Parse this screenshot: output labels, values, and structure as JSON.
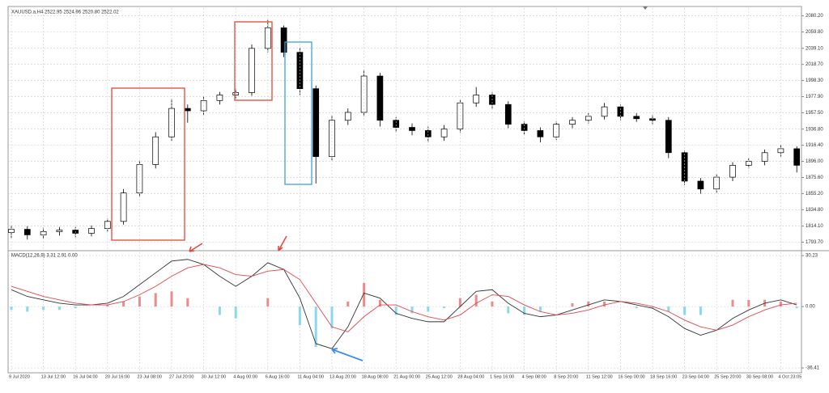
{
  "chart_data": [
    {
      "type": "candlestick",
      "title": "XAUUSD.a,H4  2522.95 2524.96 2520.80 2522.02",
      "open": [
        1806,
        1810,
        1803,
        1807,
        1809,
        1805,
        1811,
        1820,
        1856,
        1892,
        1927,
        1963,
        1960,
        1973,
        1980,
        1983,
        2039,
        2065,
        2034,
        1988,
        1902,
        1948,
        1958,
        2004,
        1948,
        1939,
        1935,
        1927,
        1937,
        1970,
        1980,
        1968,
        1943,
        1935,
        1927,
        1943,
        1948,
        1953,
        1965,
        1953,
        1950,
        1948,
        1907,
        1871,
        1861,
        1876,
        1891,
        1896,
        1907,
        1912
      ],
      "high": [
        1815,
        1814,
        1812,
        1813,
        1813,
        1815,
        1824,
        1861,
        1897,
        1933,
        1975,
        1968,
        1978,
        1984,
        1988,
        2044,
        2075,
        2068,
        2040,
        1992,
        1954,
        1963,
        2012,
        2008,
        1952,
        1944,
        1940,
        1942,
        1974,
        1990,
        1984,
        1972,
        1947,
        1939,
        1947,
        1952,
        1957,
        1970,
        1968,
        1957,
        1955,
        1952,
        1910,
        1875,
        1880,
        1895,
        1900,
        1911,
        1917,
        1915
      ],
      "low": [
        1799,
        1797,
        1798,
        1802,
        1800,
        1801,
        1807,
        1816,
        1851,
        1887,
        1922,
        1945,
        1955,
        1968,
        1976,
        1979,
        2034,
        2028,
        1980,
        1868,
        1897,
        1942,
        1953,
        1940,
        1933,
        1929,
        1920,
        1922,
        1932,
        1965,
        1963,
        1938,
        1930,
        1920,
        1923,
        1938,
        1944,
        1949,
        1948,
        1946,
        1943,
        1900,
        1866,
        1855,
        1856,
        1871,
        1887,
        1891,
        1902,
        1882
      ],
      "close": [
        1810,
        1803,
        1807,
        1809,
        1805,
        1811,
        1820,
        1856,
        1892,
        1927,
        1963,
        1960,
        1973,
        1980,
        1983,
        2039,
        2065,
        2034,
        1988,
        1902,
        1948,
        1958,
        2004,
        1948,
        1939,
        1935,
        1927,
        1937,
        1970,
        1980,
        1968,
        1943,
        1935,
        1927,
        1943,
        1948,
        1953,
        1965,
        1953,
        1950,
        1948,
        1907,
        1871,
        1861,
        1876,
        1891,
        1896,
        1907,
        1912,
        1891
      ],
      "up_color": "#ffffff",
      "down_color": "#000000",
      "ylim": [
        1785,
        2090
      ],
      "yticks": [
        {
          "value": 2080.2,
          "label": "2080.20"
        },
        {
          "value": 2059.8,
          "label": "2059.80"
        },
        {
          "value": 2039.1,
          "label": "2039.10"
        },
        {
          "value": 2018.7,
          "label": "2018.70"
        },
        {
          "value": 1998.3,
          "label": "1998.30"
        },
        {
          "value": 1977.9,
          "label": "1977.90"
        },
        {
          "value": 1957.5,
          "label": "1957.50"
        },
        {
          "value": 1936.8,
          "label": "1936.80"
        },
        {
          "value": 1916.4,
          "label": "1916.40"
        },
        {
          "value": 1896,
          "label": "1896.00"
        },
        {
          "value": 1875.6,
          "label": "1875.60"
        },
        {
          "value": 1855.2,
          "label": "1855.20"
        },
        {
          "value": 1834.8,
          "label": "1834.80"
        },
        {
          "value": 1814.1,
          "label": "1814.10"
        },
        {
          "value": 1793.7,
          "label": "1793.70"
        }
      ],
      "grid": true
    },
    {
      "type": "macd",
      "title": "MACD(12,26,9) 3.31 2.91 0.00",
      "categories": [
        "9 Jul 2020",
        null,
        "13 Jul 12:00",
        null,
        "16 Jul 04:00",
        null,
        "20 Jul 16:00",
        null,
        "23 Jul 08:00",
        null,
        "27 Jul 20:00",
        null,
        "30 Jul 12:00",
        null,
        "4 Aug 00:00",
        null,
        "6 Aug 16:00",
        null,
        "11 Aug 04:00",
        null,
        "13 Aug 20:00",
        null,
        "18 Aug 08:00",
        null,
        "21 Aug 00:00",
        null,
        "25 Aug 12:00",
        null,
        "28 Aug 04:00",
        null,
        "1 Sep 16:00",
        null,
        "4 Sep 08:00",
        null,
        "8 Sep 20:00",
        null,
        "11 Sep 12:00",
        null,
        "16 Sep 00:00",
        null,
        "18 Sep 16:00",
        null,
        "23 Sep 04:00",
        null,
        "25 Sep 20:00",
        null,
        "30 Sep 08:00",
        null,
        "4 Oct 23:05",
        null
      ],
      "series": [
        {
          "color": "#333333",
          "values": [
            10,
            6,
            4,
            2,
            1,
            1,
            2,
            6,
            13,
            20,
            27,
            28,
            25,
            18,
            12,
            18,
            26,
            22,
            5,
            -22,
            -25,
            -12,
            8,
            5,
            -4,
            -7,
            -9,
            -9,
            0,
            9,
            10,
            2,
            -4,
            -6,
            -5,
            -2,
            1,
            4,
            3,
            1,
            -1,
            -6,
            -13,
            -17,
            -14,
            -7,
            -2,
            2,
            4,
            1
          ]
        },
        {
          "color": "#e0474c",
          "values": [
            12,
            9,
            6,
            4,
            2,
            1,
            1,
            3,
            7,
            12,
            18,
            23,
            25,
            23,
            19,
            18,
            21,
            22,
            16,
            2,
            -12,
            -15,
            -6,
            1,
            1,
            -3,
            -6,
            -8,
            -5,
            2,
            7,
            6,
            1,
            -3,
            -5,
            -4,
            -2,
            1,
            3,
            2,
            0,
            -3,
            -8,
            -12,
            -14,
            -11,
            -6,
            -2,
            1,
            2
          ]
        }
      ],
      "histogram": {
        "positive_color": "#f08a8a",
        "negative_color": "#8ad8ea",
        "values": [
          -2,
          -3,
          -2,
          -2,
          -1,
          0,
          1,
          3,
          6,
          8,
          9,
          5,
          0,
          -5,
          -7,
          0,
          5,
          0,
          -11,
          -24,
          -13,
          3,
          14,
          4,
          -5,
          -4,
          -3,
          -1,
          5,
          7,
          3,
          -4,
          -5,
          -3,
          0,
          2,
          3,
          3,
          0,
          -1,
          -1,
          -3,
          -5,
          -5,
          0,
          4,
          4,
          4,
          3,
          -1
        ]
      },
      "ylim": [
        -38.8,
        32.2
      ],
      "yticks": [
        30.23,
        {
          "value": 0,
          "label": "0.00"
        },
        -36.41
      ],
      "grid": true
    }
  ]
}
